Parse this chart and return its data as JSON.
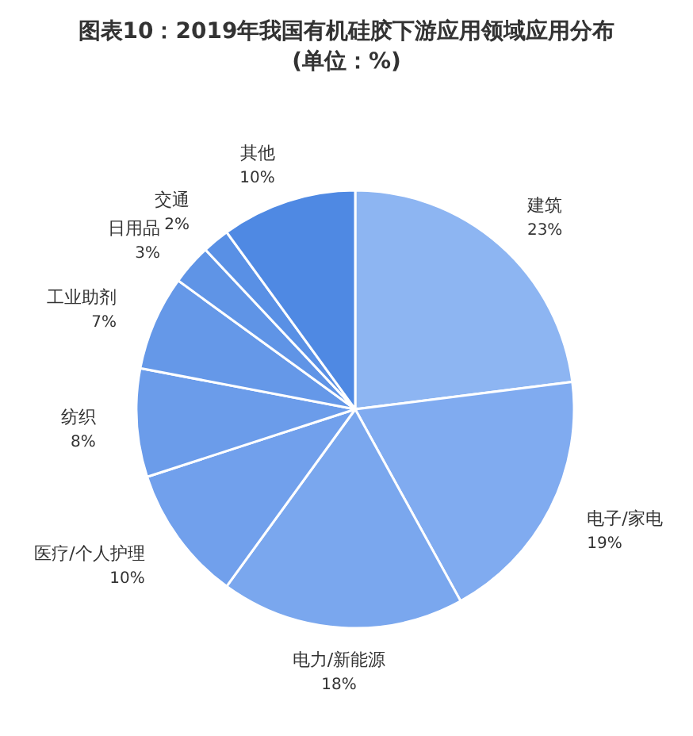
{
  "chart_data": {
    "type": "pie",
    "title": "图表10：2019年我国有机硅胶下游应用领域应用分布",
    "subtitle": "(单位：%)",
    "categories": [
      "建筑",
      "电子/家电",
      "电力/新能源",
      "医疗/个人护理",
      "纺织",
      "工业助剂",
      "日用品",
      "交通",
      "其他"
    ],
    "values": [
      23,
      19,
      18,
      10,
      8,
      7,
      3,
      2,
      10
    ],
    "value_labels": [
      "23%",
      "19%",
      "18%",
      "10%",
      "8%",
      "7%",
      "3%",
      "2%",
      "10%"
    ],
    "colors": [
      "#8db5f2",
      "#80abf0",
      "#7aa7ee",
      "#71a0ec",
      "#6b9cea",
      "#6598e8",
      "#5f94e6",
      "#5990e5",
      "#4f89e3"
    ],
    "legend": false
  }
}
